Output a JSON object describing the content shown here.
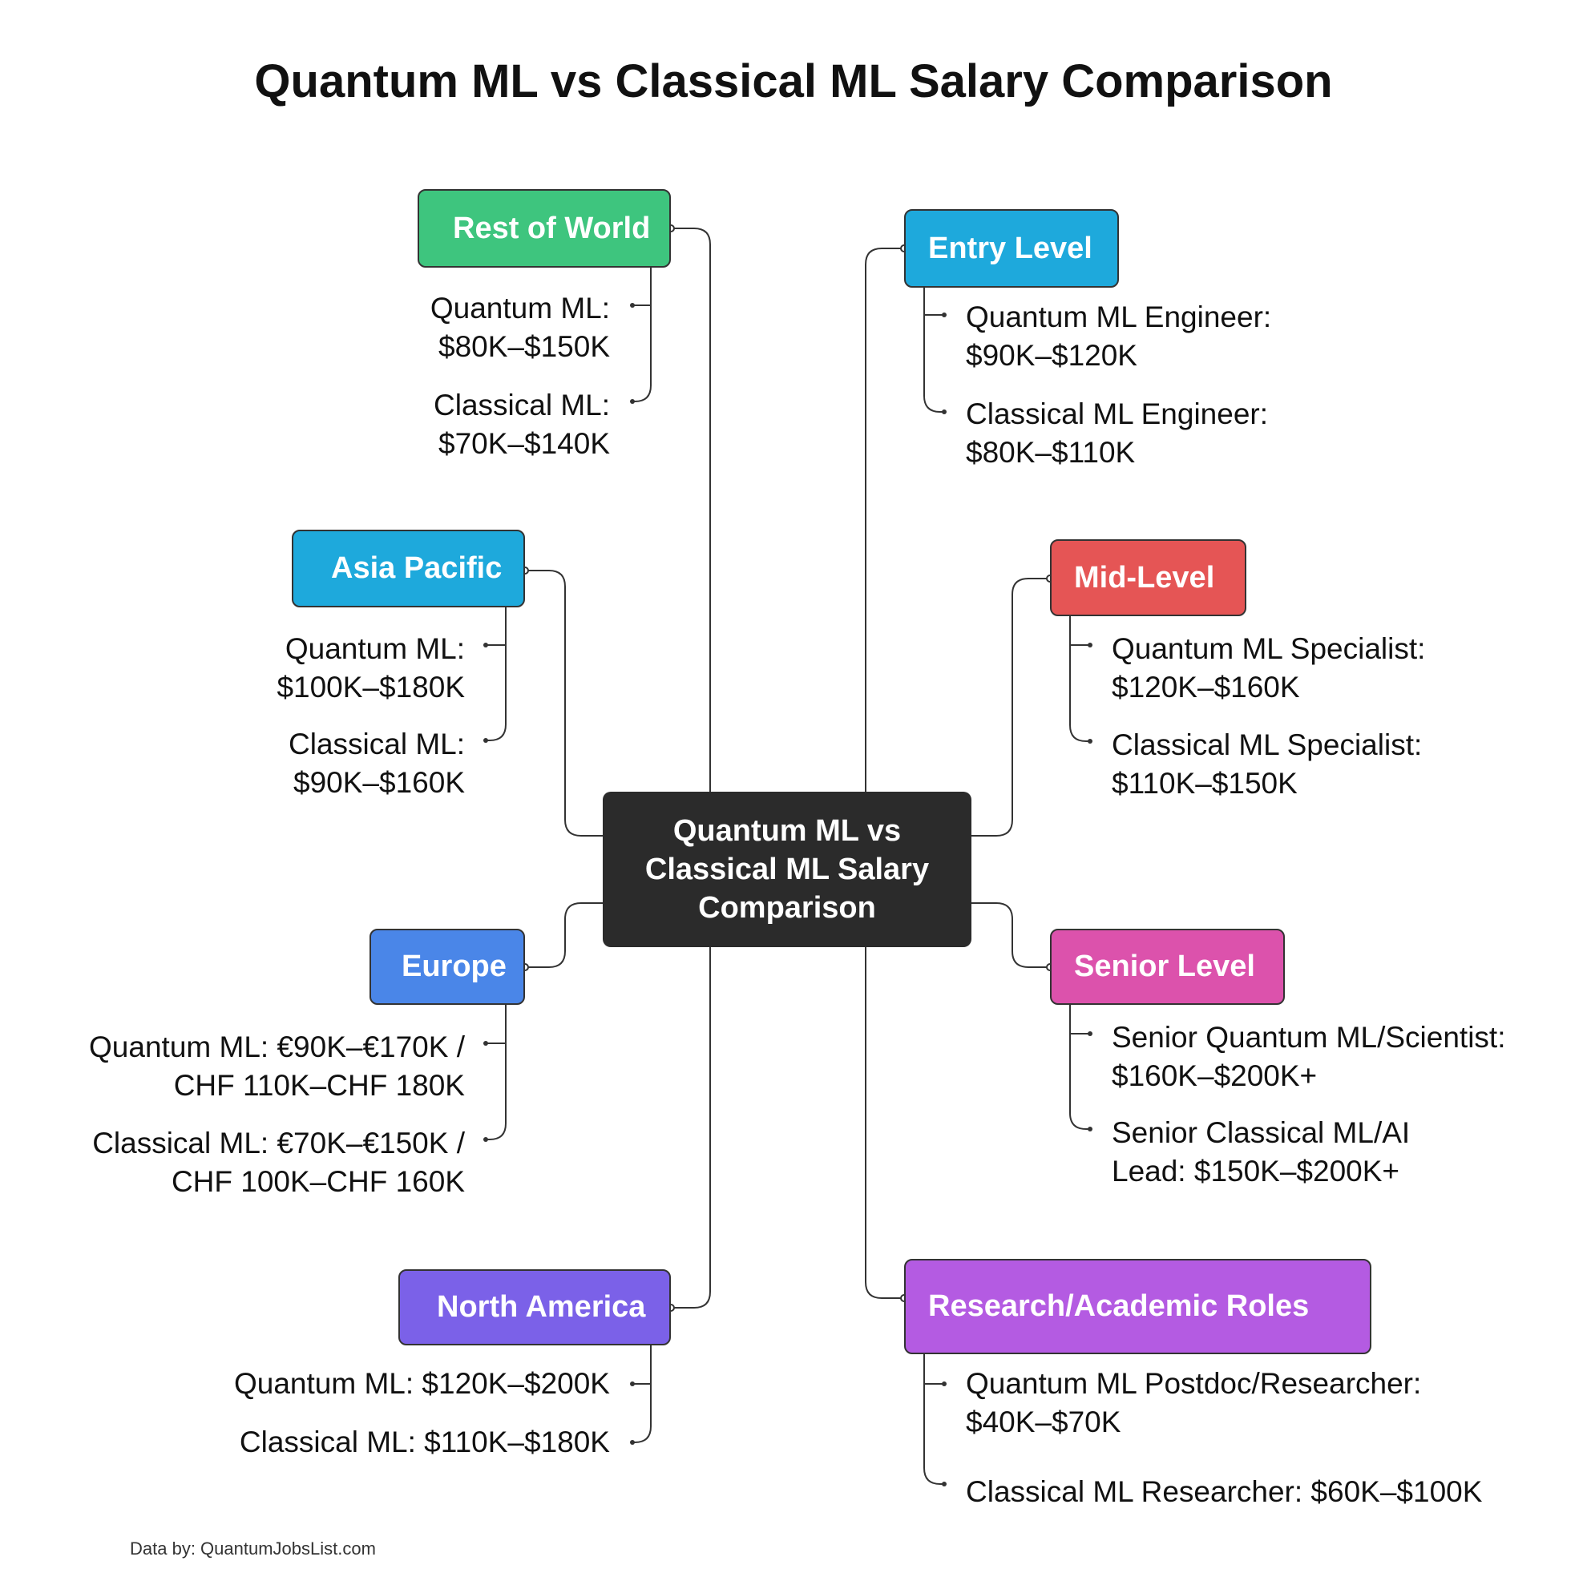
{
  "title": "Quantum ML vs Classical ML Salary Comparison",
  "center": "Quantum ML vs Classical ML Salary Comparison",
  "colors": {
    "rest_of_world": "#3ec57e",
    "asia_pacific": "#1ea9dc",
    "europe": "#4a86e8",
    "north_america": "#7b61e8",
    "entry_level": "#1ea9dc",
    "mid_level": "#e55555",
    "senior_level": "#dc52ac",
    "research": "#b45be2",
    "center": "#2b2b2b"
  },
  "left": {
    "rest_of_world": {
      "label": "Rest of World",
      "items": [
        [
          "Quantum ML:",
          "$80K–$150K"
        ],
        [
          "Classical ML:",
          "$70K–$140K"
        ]
      ]
    },
    "asia_pacific": {
      "label": "Asia Pacific",
      "items": [
        [
          "Quantum ML:",
          "$100K–$180K"
        ],
        [
          "Classical ML:",
          "$90K–$160K"
        ]
      ]
    },
    "europe": {
      "label": "Europe",
      "items": [
        [
          "Quantum ML: €90K–€170K /",
          "CHF 110K–CHF 180K"
        ],
        [
          "Classical ML: €70K–€150K /",
          "CHF 100K–CHF 160K"
        ]
      ]
    },
    "north_america": {
      "label": "North America",
      "items": [
        [
          "Quantum ML: $120K–$200K"
        ],
        [
          "Classical ML: $110K–$180K"
        ]
      ]
    }
  },
  "right": {
    "entry_level": {
      "label": "Entry Level",
      "items": [
        [
          "Quantum ML Engineer:",
          "$90K–$120K"
        ],
        [
          "Classical ML Engineer:",
          "$80K–$110K"
        ]
      ]
    },
    "mid_level": {
      "label": "Mid-Level",
      "items": [
        [
          "Quantum ML Specialist:",
          "$120K–$160K"
        ],
        [
          "Classical ML Specialist:",
          "$110K–$150K"
        ]
      ]
    },
    "senior_level": {
      "label": "Senior Level",
      "items": [
        [
          "Senior Quantum ML/Scientist:",
          "$160K–$200K+"
        ],
        [
          "Senior Classical ML/AI",
          "Lead: $150K–$200K+"
        ]
      ]
    },
    "research": {
      "label": "Research/Academic Roles",
      "items": [
        [
          "Quantum ML Postdoc/Researcher:",
          "$40K–$70K"
        ],
        [
          "Classical ML Researcher: $60K–$100K"
        ]
      ]
    }
  },
  "footer": "Data by: QuantumJobsList.com"
}
